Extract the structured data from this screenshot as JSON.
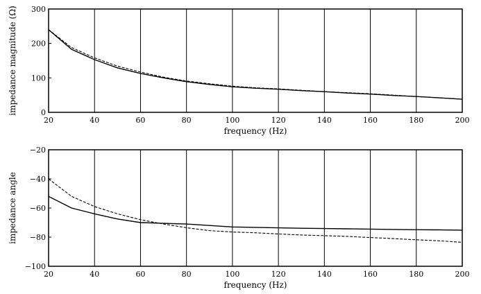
{
  "chart_data": [
    {
      "type": "line",
      "xlabel": "frequency (Hz)",
      "ylabel": "impedance magnitude (Ω)",
      "xlim": [
        20,
        200
      ],
      "ylim": [
        0,
        300
      ],
      "xticks": [
        "20",
        "40",
        "60",
        "80",
        "100",
        "120",
        "140",
        "160",
        "180",
        "200"
      ],
      "yticks": [
        "0",
        "100",
        "200",
        "300"
      ],
      "grid": "vertical",
      "series": [
        {
          "style": "solid",
          "x": [
            20,
            30,
            40,
            50,
            60,
            70,
            80,
            90,
            100,
            110,
            120,
            130,
            140,
            150,
            160,
            170,
            180,
            190,
            200
          ],
          "y": [
            240,
            183,
            153,
            129,
            113,
            100,
            89,
            81,
            74,
            70,
            67,
            63,
            60,
            56,
            53,
            49,
            46,
            42,
            38
          ]
        },
        {
          "style": "dashed",
          "x": [
            20,
            30,
            40,
            50,
            60,
            70,
            80,
            90,
            100,
            110,
            120,
            130,
            140,
            150,
            160,
            170,
            180,
            190,
            200
          ],
          "y": [
            240,
            188,
            158,
            134,
            117,
            102,
            91,
            83,
            76,
            71,
            68,
            64,
            60,
            57,
            54,
            50,
            46,
            42,
            38
          ]
        }
      ]
    },
    {
      "type": "line",
      "xlabel": "frequency (Hz)",
      "ylabel": "impedance angle",
      "xlim": [
        20,
        200
      ],
      "ylim": [
        -100,
        -20
      ],
      "xticks": [
        "20",
        "40",
        "60",
        "80",
        "100",
        "120",
        "140",
        "160",
        "180",
        "200"
      ],
      "yticks": [
        "−100",
        "−80",
        "−60",
        "−40",
        "−20"
      ],
      "grid": "vertical",
      "series": [
        {
          "style": "solid",
          "x": [
            20,
            30,
            40,
            50,
            60,
            70,
            80,
            90,
            100,
            110,
            120,
            130,
            140,
            150,
            160,
            170,
            180,
            190,
            200
          ],
          "y": [
            -52,
            -60,
            -64,
            -67.5,
            -70,
            -70.5,
            -71,
            -72,
            -73,
            -73.3,
            -73.6,
            -73.9,
            -74.1,
            -74.3,
            -74.5,
            -74.7,
            -74.9,
            -75,
            -75.2
          ]
        },
        {
          "style": "dashed",
          "x": [
            20,
            30,
            40,
            50,
            60,
            70,
            80,
            90,
            100,
            110,
            120,
            130,
            140,
            150,
            160,
            170,
            180,
            190,
            200
          ],
          "y": [
            -40,
            -52,
            -59,
            -64,
            -68,
            -71,
            -73.5,
            -75.5,
            -76.5,
            -77,
            -77.8,
            -78.5,
            -79,
            -79.5,
            -80.3,
            -81,
            -81.8,
            -82.5,
            -83.5
          ]
        }
      ]
    }
  ]
}
